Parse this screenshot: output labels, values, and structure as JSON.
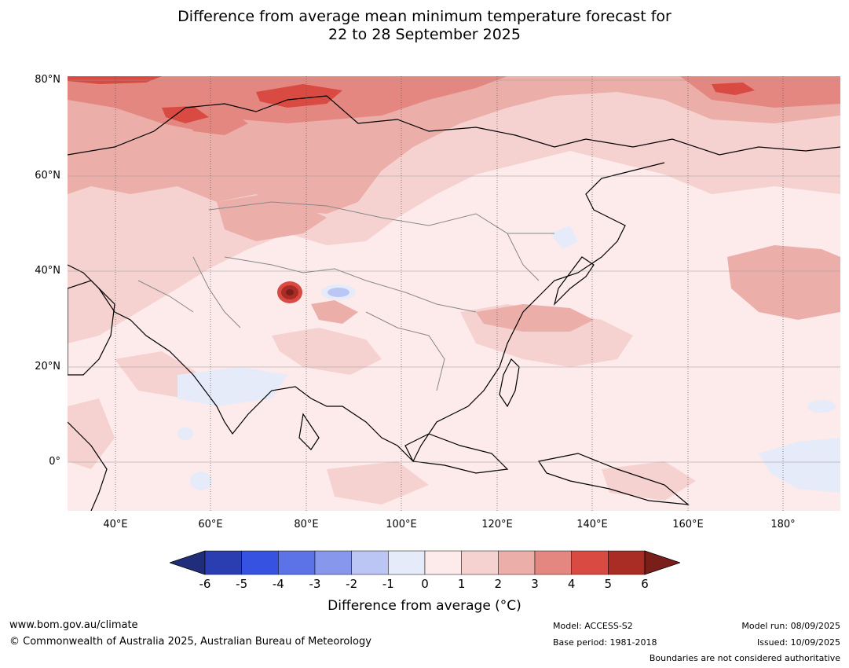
{
  "title": {
    "line1": "Difference from average mean minimum temperature forecast for",
    "line2": "22 to 28 September 2025"
  },
  "map": {
    "lat_labels": [
      "80°N",
      "60°N",
      "40°N",
      "20°N",
      "0°"
    ],
    "lon_labels": [
      "40°E",
      "60°E",
      "80°E",
      "100°E",
      "120°E",
      "140°E",
      "160°E",
      "180°"
    ],
    "extent": {
      "lon_min": 30,
      "lon_max": 192,
      "lat_min": -10,
      "lat_max": 81
    }
  },
  "colorbar": {
    "ticks": [
      "-6",
      "-5",
      "-4",
      "-3",
      "-2",
      "-1",
      "0",
      "1",
      "2",
      "3",
      "4",
      "5",
      "6"
    ],
    "colors": [
      "#2a3eb1",
      "#3553e0",
      "#5b73e6",
      "#8797ec",
      "#bcc6f4",
      "#e6ebfa",
      "#fdeaea",
      "#f5d2d0",
      "#ecaea9",
      "#e48781",
      "#d84a42",
      "#a92c25"
    ],
    "under_color": "#1f2d7a",
    "over_color": "#7a1e1a",
    "label": "Difference from average ($^\\circ$C)",
    "label_display": "Difference from average (°C)"
  },
  "footer": {
    "url": "www.bom.gov.au/climate",
    "copyright": "© Commonwealth of Australia 2025, Australian Bureau of Meteorology",
    "model": "Model: ACCESS-S2",
    "base_period": "Base period: 1981-2018",
    "model_run": "Model run: 08/09/2025",
    "issued": "Issued: 10/09/2025",
    "boundaries": "Boundaries are not considered authoritative"
  }
}
